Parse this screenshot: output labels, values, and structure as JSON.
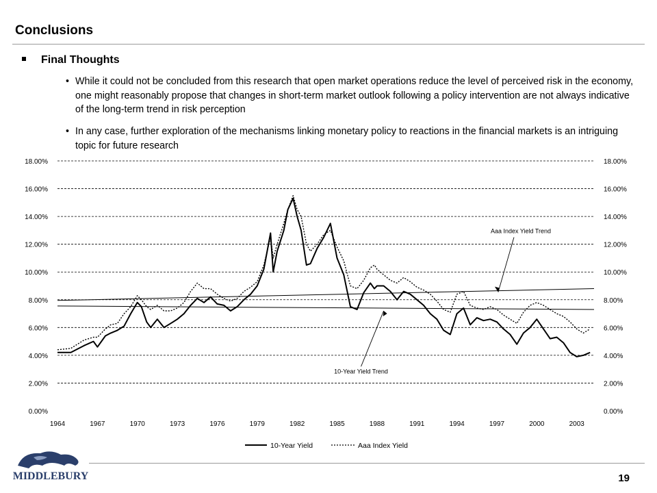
{
  "slide": {
    "title": "Conclusions",
    "heading": "Final Thoughts",
    "bullets": [
      "While it could not be concluded from this research that open market operations reduce the level of perceived risk in the economy, one might reasonably propose that changes in short-term market outlook following a policy intervention are not always indicative of the long-term trend in risk perception",
      "In any case, further exploration of the mechanisms linking monetary policy to reactions in the financial markets is an intriguing topic for future research"
    ],
    "page_number": "19",
    "logo_text": "MIDDLEBURY"
  },
  "chart_data": {
    "type": "line",
    "title": "",
    "xlabel": "",
    "ylabel": "",
    "x_range": [
      1964,
      2004.3
    ],
    "ylim": [
      0,
      18
    ],
    "x_ticks": [
      "1964",
      "1967",
      "1970",
      "1973",
      "1976",
      "1979",
      "1982",
      "1985",
      "1988",
      "1991",
      "1994",
      "1997",
      "2000",
      "2003"
    ],
    "y_ticks": [
      "0.00%",
      "2.00%",
      "4.00%",
      "6.00%",
      "8.00%",
      "10.00%",
      "12.00%",
      "14.00%",
      "16.00%",
      "18.00%"
    ],
    "grid": "horizontal dashed",
    "legend_position": "bottom",
    "series": [
      {
        "name": "10-Year Yield",
        "style": "solid",
        "color": "#000000",
        "x": [
          1964,
          1965,
          1966,
          1966.7,
          1967,
          1967.6,
          1968,
          1968.5,
          1969,
          1969.5,
          1970,
          1970.3,
          1970.7,
          1971,
          1971.5,
          1972,
          1972.5,
          1973,
          1973.5,
          1974,
          1974.5,
          1975,
          1975.5,
          1976,
          1976.5,
          1977,
          1977.5,
          1978,
          1978.5,
          1979,
          1979.5,
          1980,
          1980.2,
          1980.5,
          1981,
          1981.3,
          1981.7,
          1982,
          1982.3,
          1982.7,
          1983,
          1983.5,
          1984,
          1984.5,
          1985,
          1985.5,
          1986,
          1986.5,
          1987,
          1987.5,
          1987.8,
          1988,
          1988.5,
          1989,
          1989.5,
          1990,
          1990.5,
          1991,
          1991.5,
          1992,
          1992.5,
          1993,
          1993.5,
          1994,
          1994.5,
          1995,
          1995.5,
          1996,
          1996.5,
          1997,
          1997.5,
          1998,
          1998.5,
          1999,
          1999.5,
          2000,
          2000.5,
          2001,
          2001.5,
          2002,
          2002.5,
          2003,
          2003.5,
          2004
        ],
        "y": [
          4.2,
          4.2,
          4.7,
          5.0,
          4.6,
          5.4,
          5.6,
          5.8,
          6.1,
          7.0,
          7.8,
          7.5,
          6.4,
          6.0,
          6.6,
          6.0,
          6.3,
          6.6,
          7.0,
          7.6,
          8.1,
          7.8,
          8.2,
          7.7,
          7.6,
          7.2,
          7.5,
          8.0,
          8.4,
          9.0,
          10.2,
          12.8,
          10.0,
          11.5,
          13.0,
          14.5,
          15.3,
          14.0,
          13.0,
          10.5,
          10.6,
          11.7,
          12.5,
          13.5,
          11.0,
          9.8,
          7.5,
          7.3,
          8.5,
          9.2,
          8.8,
          9.0,
          9.0,
          8.6,
          8.0,
          8.6,
          8.4,
          8.0,
          7.6,
          7.0,
          6.6,
          5.8,
          5.5,
          7.0,
          7.4,
          6.2,
          6.7,
          6.5,
          6.6,
          6.4,
          5.9,
          5.5,
          4.8,
          5.6,
          6.0,
          6.6,
          5.9,
          5.2,
          5.3,
          4.9,
          4.2,
          3.9,
          4.0,
          4.2
        ]
      },
      {
        "name": "Aaa Index Yield",
        "style": "dotted",
        "color": "#000000",
        "x": [
          1964,
          1965,
          1966,
          1966.7,
          1967,
          1967.6,
          1968,
          1968.5,
          1969,
          1969.5,
          1970,
          1970.3,
          1970.7,
          1971,
          1971.5,
          1972,
          1972.5,
          1973,
          1973.5,
          1974,
          1974.5,
          1975,
          1975.5,
          1976,
          1976.5,
          1977,
          1977.5,
          1978,
          1978.5,
          1979,
          1979.5,
          1980,
          1980.2,
          1980.5,
          1981,
          1981.3,
          1981.7,
          1982,
          1982.3,
          1982.7,
          1983,
          1983.5,
          1984,
          1984.5,
          1985,
          1985.5,
          1986,
          1986.5,
          1987,
          1987.5,
          1987.8,
          1988,
          1988.5,
          1989,
          1989.5,
          1990,
          1990.5,
          1991,
          1991.5,
          1992,
          1992.5,
          1993,
          1993.5,
          1994,
          1994.5,
          1995,
          1995.5,
          1996,
          1996.5,
          1997,
          1997.5,
          1998,
          1998.5,
          1999,
          1999.5,
          2000,
          2000.5,
          2001,
          2001.5,
          2002,
          2002.5,
          2003,
          2003.5,
          2004
        ],
        "y": [
          4.4,
          4.5,
          5.1,
          5.3,
          5.3,
          5.9,
          6.2,
          6.3,
          7.0,
          7.5,
          8.3,
          8.0,
          7.5,
          7.3,
          7.6,
          7.2,
          7.2,
          7.4,
          7.8,
          8.6,
          9.2,
          8.8,
          8.8,
          8.4,
          8.1,
          7.9,
          8.1,
          8.6,
          8.9,
          9.3,
          10.5,
          12.5,
          11.0,
          12.0,
          13.5,
          14.5,
          15.5,
          14.5,
          14.0,
          12.0,
          11.5,
          12.0,
          12.7,
          13.0,
          11.8,
          10.8,
          9.0,
          8.8,
          9.4,
          10.3,
          10.5,
          10.2,
          9.8,
          9.4,
          9.2,
          9.6,
          9.3,
          8.9,
          8.7,
          8.4,
          7.9,
          7.3,
          7.1,
          8.4,
          8.6,
          7.6,
          7.4,
          7.3,
          7.5,
          7.3,
          6.9,
          6.6,
          6.3,
          7.1,
          7.6,
          7.8,
          7.6,
          7.3,
          7.0,
          6.8,
          6.4,
          5.9,
          5.6,
          5.9
        ]
      }
    ],
    "trend_lines": [
      {
        "name": "Aaa Index Yield Trend",
        "x": [
          1964,
          2004.3
        ],
        "y": [
          7.95,
          8.8
        ]
      },
      {
        "name": "10-Year Yield Trend",
        "x": [
          1964,
          2004.3
        ],
        "y": [
          7.55,
          7.3
        ]
      }
    ],
    "annotations": [
      {
        "text": "Aaa Index Yield Trend",
        "x": 1998.8,
        "y": 12.8
      },
      {
        "text": "10-Year Yield Trend",
        "x": 1986.8,
        "y": 2.7
      }
    ]
  }
}
